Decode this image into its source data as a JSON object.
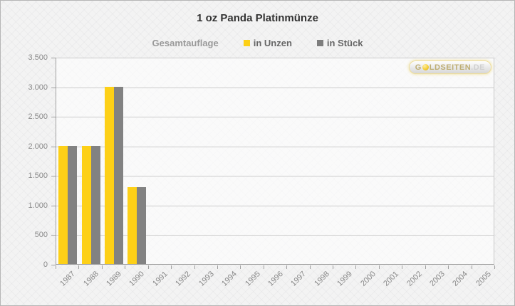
{
  "title": "1 oz Panda Platinmünze",
  "legend": {
    "group_label": "Gesamtauflage",
    "items": [
      {
        "label": "in Unzen",
        "color": "#fdd017"
      },
      {
        "label": "in Stück",
        "color": "#7d7d7d"
      }
    ]
  },
  "watermark": {
    "text": "GOLDSEITEN.DE",
    "part1": "G",
    "part2": "LDSEITEN",
    "part3": ".DE"
  },
  "chart_data": {
    "type": "bar",
    "title": "1 oz Panda Platinmünze",
    "categories": [
      "1987",
      "1988",
      "1989",
      "1990",
      "1991",
      "1992",
      "1993",
      "1994",
      "1995",
      "1996",
      "1997",
      "1998",
      "1999",
      "2000",
      "2001",
      "2002",
      "2003",
      "2004",
      "2005"
    ],
    "series": [
      {
        "name": "in Unzen",
        "color": "#fdd017",
        "values": [
          2000,
          2000,
          3000,
          1300,
          0,
          0,
          0,
          0,
          0,
          0,
          0,
          0,
          0,
          0,
          0,
          0,
          0,
          0,
          0
        ]
      },
      {
        "name": "in Stück",
        "color": "#828282",
        "values": [
          2000,
          2000,
          3000,
          1300,
          0,
          0,
          0,
          0,
          0,
          0,
          0,
          0,
          0,
          0,
          0,
          0,
          0,
          0,
          0
        ]
      }
    ],
    "xlabel": "",
    "ylabel": "",
    "ylim": [
      0,
      3500
    ],
    "ytick_step": 500,
    "ytick_labels": [
      "0",
      "500",
      "1.000",
      "1.500",
      "2.000",
      "2.500",
      "3.000",
      "3.500"
    ],
    "grid": true,
    "legend_position": "top"
  },
  "colors": {
    "bar_yellow": "#fdd017",
    "bar_gray": "#828282",
    "gridline": "#cbcbcb",
    "axis": "#a0a0a0",
    "tick_label": "#8a8a8a",
    "title_text": "#333333",
    "legend_group": "#999999",
    "legend_item": "#666666",
    "background": "#f3f3f3"
  }
}
